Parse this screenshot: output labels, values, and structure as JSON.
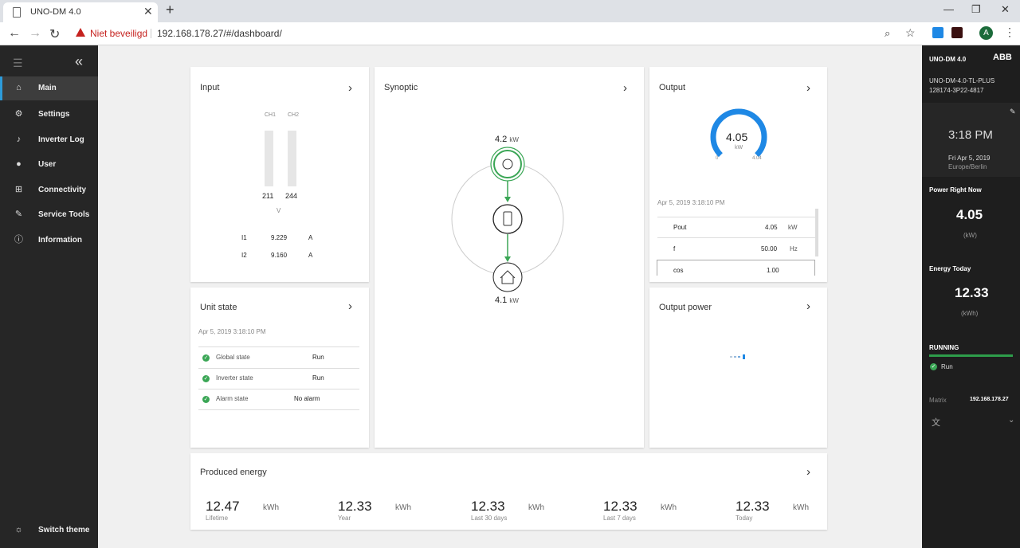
{
  "browser": {
    "tab_title": "UNO-DM 4.0",
    "security_text": "Niet beveiligd",
    "url": "192.168.178.27/#/dashboard/",
    "avatar_letter": "A"
  },
  "sidebar": {
    "items": [
      {
        "label": "Main",
        "icon": "home-icon"
      },
      {
        "label": "Settings",
        "icon": "gear-icon"
      },
      {
        "label": "Inverter Log",
        "icon": "bell-icon"
      },
      {
        "label": "User",
        "icon": "user-icon"
      },
      {
        "label": "Connectivity",
        "icon": "network-icon"
      },
      {
        "label": "Service Tools",
        "icon": "wrench-icon"
      },
      {
        "label": "Information",
        "icon": "info-icon"
      }
    ],
    "switch_theme": "Switch theme"
  },
  "input": {
    "title": "Input",
    "ch1": "CH1",
    "ch2": "CH2",
    "v1": "211",
    "v2": "244",
    "vunit": "V",
    "rows": [
      {
        "label": "I1",
        "value": "9.229",
        "unit": "A"
      },
      {
        "label": "I2",
        "value": "9.160",
        "unit": "A"
      }
    ]
  },
  "synoptic": {
    "title": "Synoptic",
    "top_value": "4.2",
    "top_unit": "kW",
    "bottom_value": "4.1",
    "bottom_unit": "kW"
  },
  "output": {
    "title": "Output",
    "gauge_value": "4.05",
    "gauge_unit": "kW",
    "gauge_min": "0",
    "gauge_max": "4.04",
    "gauge_fraction": 1.0,
    "timestamp": "Apr 5, 2019 3:18:10 PM",
    "rows": [
      {
        "label": "Pout",
        "value": "4.05",
        "unit": "kW"
      },
      {
        "label": "f",
        "value": "50.00",
        "unit": "Hz"
      },
      {
        "label": "cos",
        "value": "1.00",
        "unit": ""
      }
    ]
  },
  "unit_state": {
    "title": "Unit state",
    "timestamp": "Apr 5, 2019 3:18:10 PM",
    "rows": [
      {
        "label": "Global state",
        "value": "Run"
      },
      {
        "label": "Inverter state",
        "value": "Run"
      },
      {
        "label": "Alarm state",
        "value": "No alarm"
      }
    ]
  },
  "output_power": {
    "title": "Output power"
  },
  "produced": {
    "title": "Produced energy",
    "items": [
      {
        "value": "12.47",
        "unit": "kWh",
        "label": "Lifetime"
      },
      {
        "value": "12.33",
        "unit": "kWh",
        "label": "Year"
      },
      {
        "value": "12.33",
        "unit": "kWh",
        "label": "Last 30 days"
      },
      {
        "value": "12.33",
        "unit": "kWh",
        "label": "Last 7 days"
      },
      {
        "value": "12.33",
        "unit": "kWh",
        "label": "Today"
      }
    ]
  },
  "right": {
    "device": "UNO-DM 4.0",
    "brand": "ABB",
    "model": "UNO-DM-4.0-TL-PLUS",
    "serial": "128174-3P22-4817",
    "time": "3:18 PM",
    "date": "Fri Apr 5, 2019",
    "tz": "Europe/Berlin",
    "power_label": "Power Right Now",
    "power_value": "4.05",
    "power_unit": "(kW)",
    "energy_label": "Energy Today",
    "energy_value": "12.33",
    "energy_unit": "(kWh)",
    "status": "RUNNING",
    "run": "Run",
    "matrix_label": "Matrix",
    "matrix_value": "192.168.178.27"
  },
  "colors": {
    "accent": "#2d9cdb",
    "green": "#3aa655",
    "gauge": "#1e88e5"
  }
}
